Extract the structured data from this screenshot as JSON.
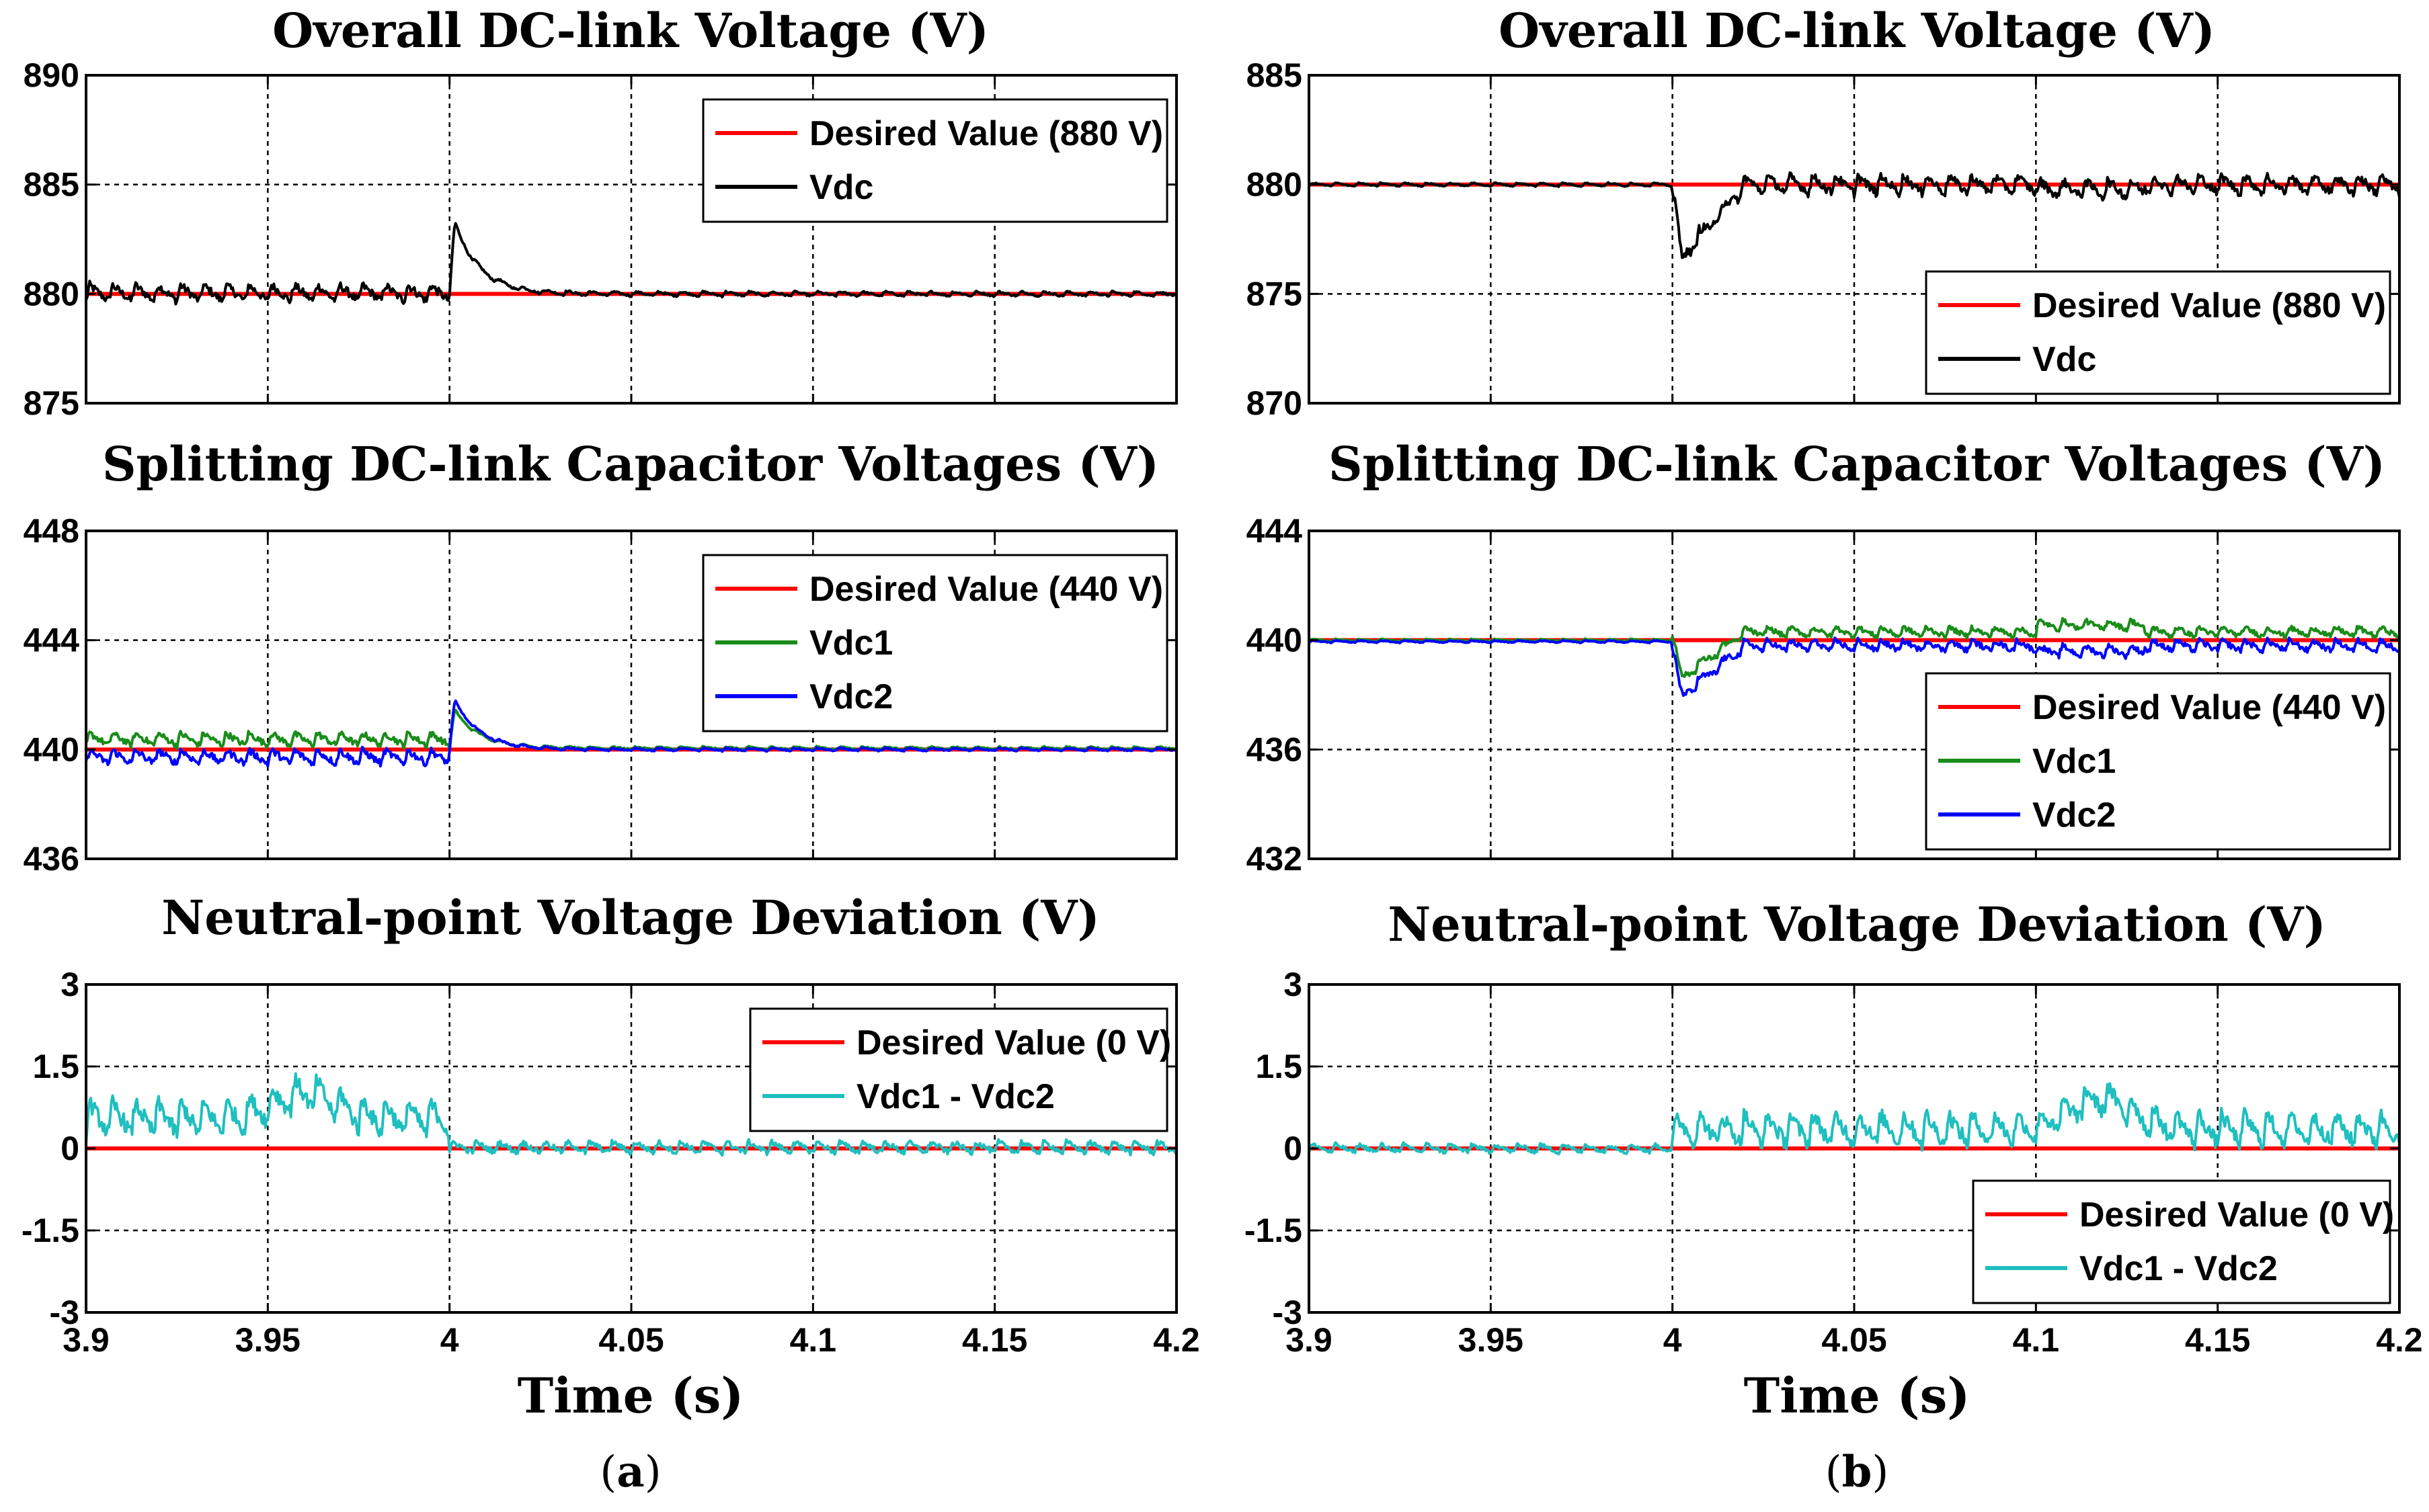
{
  "figure": {
    "xlabel": "Time (s)",
    "panel_labels": [
      {
        "open": "(",
        "letter": "a",
        "close": ")"
      },
      {
        "open": "(",
        "letter": "b",
        "close": ")"
      }
    ],
    "colors": {
      "desired": "#ff0000",
      "vdc": "#000000",
      "vdc1": "#1a8c1a",
      "vdc2": "#0000ff",
      "dev": "#1fbfbf"
    }
  },
  "chart_data": [
    {
      "id": "a-top",
      "type": "line",
      "title": "Overall DC-link Voltage (V)",
      "xlim": [
        3.9,
        4.2
      ],
      "ylim": [
        875,
        890
      ],
      "xticks": [
        3.9,
        3.95,
        4,
        4.05,
        4.1,
        4.15,
        4.2
      ],
      "xtick_labels": [
        "3.9",
        "3.95",
        "4",
        "4.05",
        "4.1",
        "4.15",
        "4.2"
      ],
      "yticks": [
        875,
        880,
        885,
        890
      ],
      "ytick_labels": [
        "875",
        "880",
        "885",
        "890"
      ],
      "legend_loc": "top-right",
      "grid": true,
      "series": [
        {
          "name": "Desired Value (880 V)",
          "color": "#ff0000",
          "kind": "const",
          "value": 880
        },
        {
          "name": "Vdc",
          "color": "#000000",
          "kind": "sim",
          "base": 880,
          "pre_ripple": 0.75,
          "post_ripple": 0.2,
          "step": 4.0,
          "step_sign": 1,
          "tau": 0.007,
          "settle": 4.02
        }
      ]
    },
    {
      "id": "a-mid",
      "type": "line",
      "title": "Splitting DC-link Capacitor Voltages (V)",
      "xlim": [
        3.9,
        4.2
      ],
      "ylim": [
        436,
        448
      ],
      "xticks": [
        3.9,
        3.95,
        4,
        4.05,
        4.1,
        4.15,
        4.2
      ],
      "xtick_labels": [
        "3.9",
        "3.95",
        "4",
        "4.05",
        "4.1",
        "4.15",
        "4.2"
      ],
      "yticks": [
        436,
        440,
        444,
        448
      ],
      "ytick_labels": [
        "436",
        "440",
        "444",
        "448"
      ],
      "legend_loc": "top-right",
      "grid": true,
      "series": [
        {
          "name": "Desired Value (440 V)",
          "color": "#ff0000",
          "kind": "const",
          "value": 440
        },
        {
          "name": "Vdc1",
          "color": "#1a8c1a",
          "kind": "sim",
          "base": 440.35,
          "pre_ripple": 0.45,
          "post_ripple": 0.1,
          "step": 1.7,
          "step_sign": 1,
          "tau": 0.007,
          "settle": 4.02,
          "post_base": 440.05
        },
        {
          "name": "Vdc2",
          "color": "#0000ff",
          "kind": "sim",
          "base": 439.7,
          "pre_ripple": 0.5,
          "post_ripple": 0.1,
          "step": 2.2,
          "step_sign": 1,
          "tau": 0.007,
          "settle": 4.02,
          "post_base": 440.0
        }
      ]
    },
    {
      "id": "a-bot",
      "type": "line",
      "title": "Neutral-point Voltage Deviation (V)",
      "xlim": [
        3.9,
        4.2
      ],
      "ylim": [
        -3,
        3
      ],
      "xticks": [
        3.9,
        3.95,
        4,
        4.05,
        4.1,
        4.15,
        4.2
      ],
      "xtick_labels": [
        "3.9",
        "3.95",
        "4",
        "4.05",
        "4.1",
        "4.15",
        "4.2"
      ],
      "yticks": [
        -3,
        -1.5,
        0,
        1.5,
        3
      ],
      "ytick_labels": [
        "-3",
        "-1.5",
        "0",
        "1.5",
        "3"
      ],
      "legend_loc": "top-right",
      "grid": true,
      "series": [
        {
          "name": "Desired Value (0 V)",
          "color": "#ff0000",
          "kind": "const",
          "value": 0
        },
        {
          "name": "Vdc1 - Vdc2",
          "color": "#1fbfbf",
          "kind": "dev",
          "seg": "pre_high"
        }
      ]
    },
    {
      "id": "b-top",
      "type": "line",
      "title": "Overall DC-link Voltage (V)",
      "xlim": [
        3.9,
        4.2
      ],
      "ylim": [
        870,
        885
      ],
      "xticks": [
        3.9,
        3.95,
        4,
        4.05,
        4.1,
        4.15,
        4.2
      ],
      "xtick_labels": [
        "3.9",
        "3.95",
        "4",
        "4.05",
        "4.1",
        "4.15",
        "4.2"
      ],
      "yticks": [
        870,
        875,
        880,
        885
      ],
      "ytick_labels": [
        "870",
        "875",
        "880",
        "885"
      ],
      "legend_loc": "bottom-right",
      "grid": true,
      "series": [
        {
          "name": "Desired Value (880 V)",
          "color": "#ff0000",
          "kind": "const",
          "value": 880
        },
        {
          "name": "Vdc",
          "color": "#000000",
          "kind": "sim",
          "base": 880,
          "pre_ripple": 0.15,
          "post_ripple": 0.8,
          "step": 3.8,
          "step_sign": -1,
          "tau": 0.008,
          "settle": 4.02,
          "late": true
        }
      ]
    },
    {
      "id": "b-mid",
      "type": "line",
      "title": "Splitting DC-link Capacitor Voltages (V)",
      "xlim": [
        3.9,
        4.2
      ],
      "ylim": [
        432,
        444
      ],
      "xticks": [
        3.9,
        3.95,
        4,
        4.05,
        4.1,
        4.15,
        4.2
      ],
      "xtick_labels": [
        "3.9",
        "3.95",
        "4",
        "4.05",
        "4.1",
        "4.15",
        "4.2"
      ],
      "yticks": [
        432,
        436,
        440,
        444
      ],
      "ytick_labels": [
        "432",
        "436",
        "440",
        "444"
      ],
      "legend_loc": "bottom-right",
      "grid": true,
      "series": [
        {
          "name": "Desired Value (440 V)",
          "color": "#ff0000",
          "kind": "const",
          "value": 440
        },
        {
          "name": "Vdc1",
          "color": "#1a8c1a",
          "kind": "sim",
          "base": 440.0,
          "pre_ripple": 0.08,
          "post_ripple": 0.35,
          "step": 1.9,
          "step_sign": -1,
          "tau": 0.008,
          "settle": 4.02,
          "late": true,
          "post_base": 440.3
        },
        {
          "name": "Vdc2",
          "color": "#0000ff",
          "kind": "sim",
          "base": 439.95,
          "pre_ripple": 0.08,
          "post_ripple": 0.4,
          "step": 2.1,
          "step_sign": -1,
          "tau": 0.008,
          "settle": 4.02,
          "late": true,
          "post_base": 439.8
        }
      ]
    },
    {
      "id": "b-bot",
      "type": "line",
      "title": "Neutral-point Voltage Deviation (V)",
      "xlim": [
        3.9,
        4.2
      ],
      "ylim": [
        -3,
        3
      ],
      "xticks": [
        3.9,
        3.95,
        4,
        4.05,
        4.1,
        4.15,
        4.2
      ],
      "xtick_labels": [
        "3.9",
        "3.95",
        "4",
        "4.05",
        "4.1",
        "4.15",
        "4.2"
      ],
      "yticks": [
        -3,
        -1.5,
        0,
        1.5,
        3
      ],
      "ytick_labels": [
        "-3",
        "-1.5",
        "0",
        "1.5",
        "3"
      ],
      "legend_loc": "bottom-right",
      "grid": true,
      "series": [
        {
          "name": "Desired Value (0 V)",
          "color": "#ff0000",
          "kind": "const",
          "value": 0
        },
        {
          "name": "Vdc1 - Vdc2",
          "color": "#1fbfbf",
          "kind": "dev",
          "seg": "post_high"
        }
      ]
    }
  ]
}
